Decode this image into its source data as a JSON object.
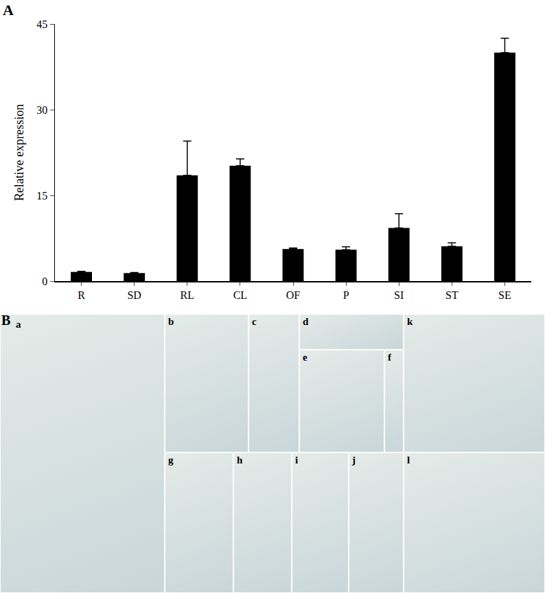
{
  "chart_data": {
    "type": "bar",
    "title": "A",
    "y_label": "Relative expression",
    "categories": [
      "R",
      "SD",
      "RL",
      "CL",
      "OF",
      "P",
      "SI",
      "ST",
      "SE"
    ],
    "values": [
      1.6,
      1.4,
      18.5,
      20.2,
      5.6,
      5.5,
      9.3,
      6.1,
      40.0
    ],
    "errors": [
      0.1,
      0.1,
      6.0,
      1.2,
      0.2,
      0.5,
      2.5,
      0.6,
      2.5
    ],
    "color": "#000000",
    "ylim": [
      0,
      45
    ],
    "yticks": [
      0,
      15,
      30,
      45
    ],
    "grid": false
  },
  "panel_b": {
    "label": "B",
    "images": [
      "a",
      "b",
      "c",
      "d",
      "e",
      "f",
      "g",
      "h",
      "i",
      "j",
      "k",
      "l"
    ]
  }
}
